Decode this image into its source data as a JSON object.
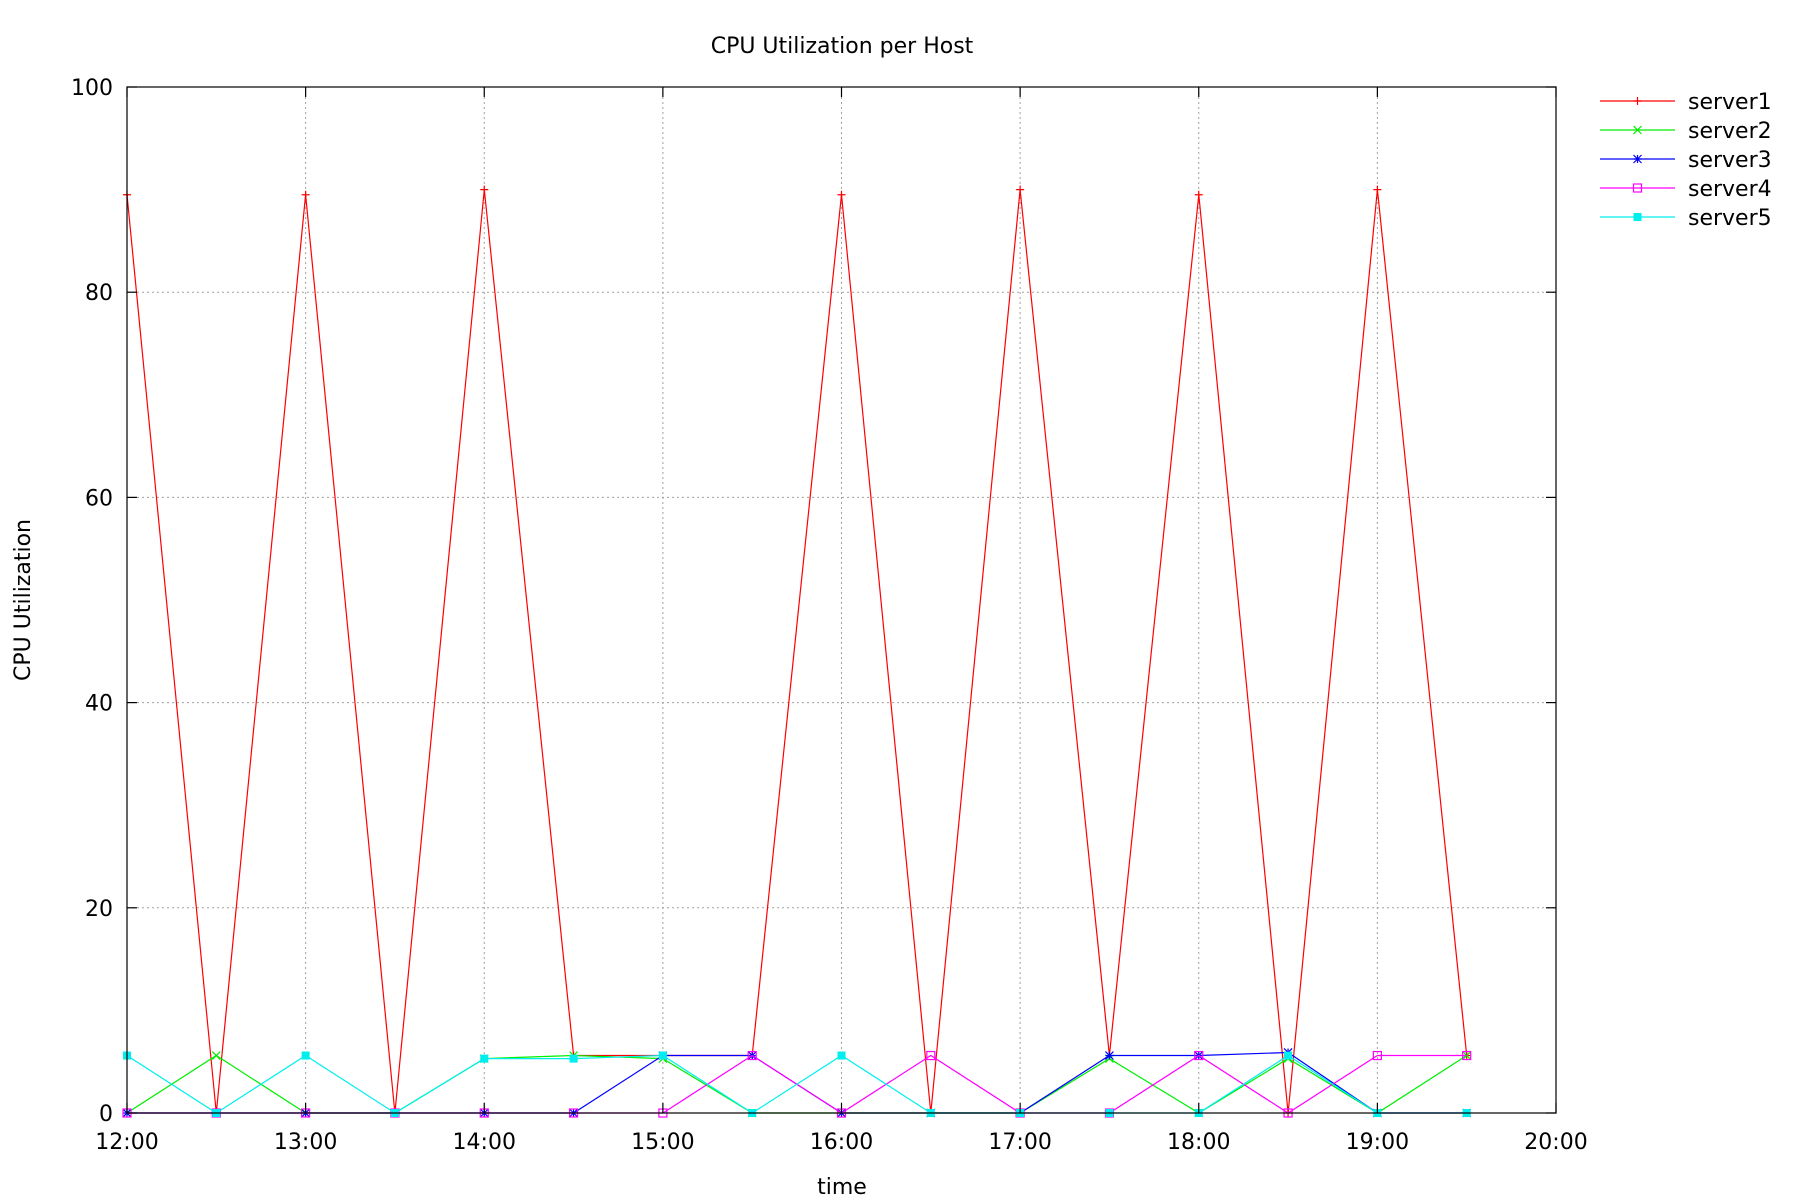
{
  "chart_data": {
    "type": "line",
    "title": "CPU Utilization per Host",
    "xlabel": "time",
    "ylabel": "CPU Utilization",
    "xlim": [
      "12:00",
      "20:00"
    ],
    "ylim": [
      0,
      100
    ],
    "x_ticks": [
      "12:00",
      "13:00",
      "14:00",
      "15:00",
      "16:00",
      "17:00",
      "18:00",
      "19:00",
      "20:00"
    ],
    "y_ticks": [
      0,
      20,
      40,
      60,
      80,
      100
    ],
    "grid": true,
    "legend_position": "top-right, outside plot",
    "x": [
      "12:00",
      "12:30",
      "13:00",
      "13:30",
      "14:00",
      "14:30",
      "15:00",
      "15:30",
      "16:00",
      "16:30",
      "17:00",
      "17:30",
      "18:00",
      "18:30",
      "19:00",
      "19:30"
    ],
    "series": [
      {
        "name": "server1",
        "color": "#ff0000",
        "marker": "plus",
        "values": [
          89.5,
          0,
          89.5,
          0,
          90,
          5.6,
          5.6,
          5.6,
          89.5,
          0,
          90,
          5.6,
          89.5,
          0,
          90,
          5.6
        ]
      },
      {
        "name": "server2",
        "color": "#00ee00",
        "marker": "cross",
        "values": [
          0,
          5.6,
          0,
          0,
          5.3,
          5.6,
          5.3,
          0,
          0,
          0,
          0,
          5.3,
          0,
          5.3,
          0,
          5.6
        ]
      },
      {
        "name": "server3",
        "color": "#0000ff",
        "marker": "star",
        "values": [
          0,
          0,
          0,
          0,
          0,
          0,
          5.6,
          5.6,
          0,
          0,
          0,
          5.6,
          5.6,
          5.9,
          0,
          0
        ]
      },
      {
        "name": "server4",
        "color": "#ff00ff",
        "marker": "box",
        "values": [
          0,
          0,
          0,
          0,
          0,
          0,
          0,
          5.6,
          0,
          5.6,
          0,
          0,
          5.6,
          0,
          5.6,
          5.6
        ]
      },
      {
        "name": "server5",
        "color": "#00eeee",
        "marker": "filled-box",
        "values": [
          5.6,
          0,
          5.6,
          0,
          5.3,
          5.3,
          5.6,
          0,
          5.6,
          0,
          0,
          0,
          0,
          5.6,
          0,
          0
        ]
      }
    ]
  }
}
